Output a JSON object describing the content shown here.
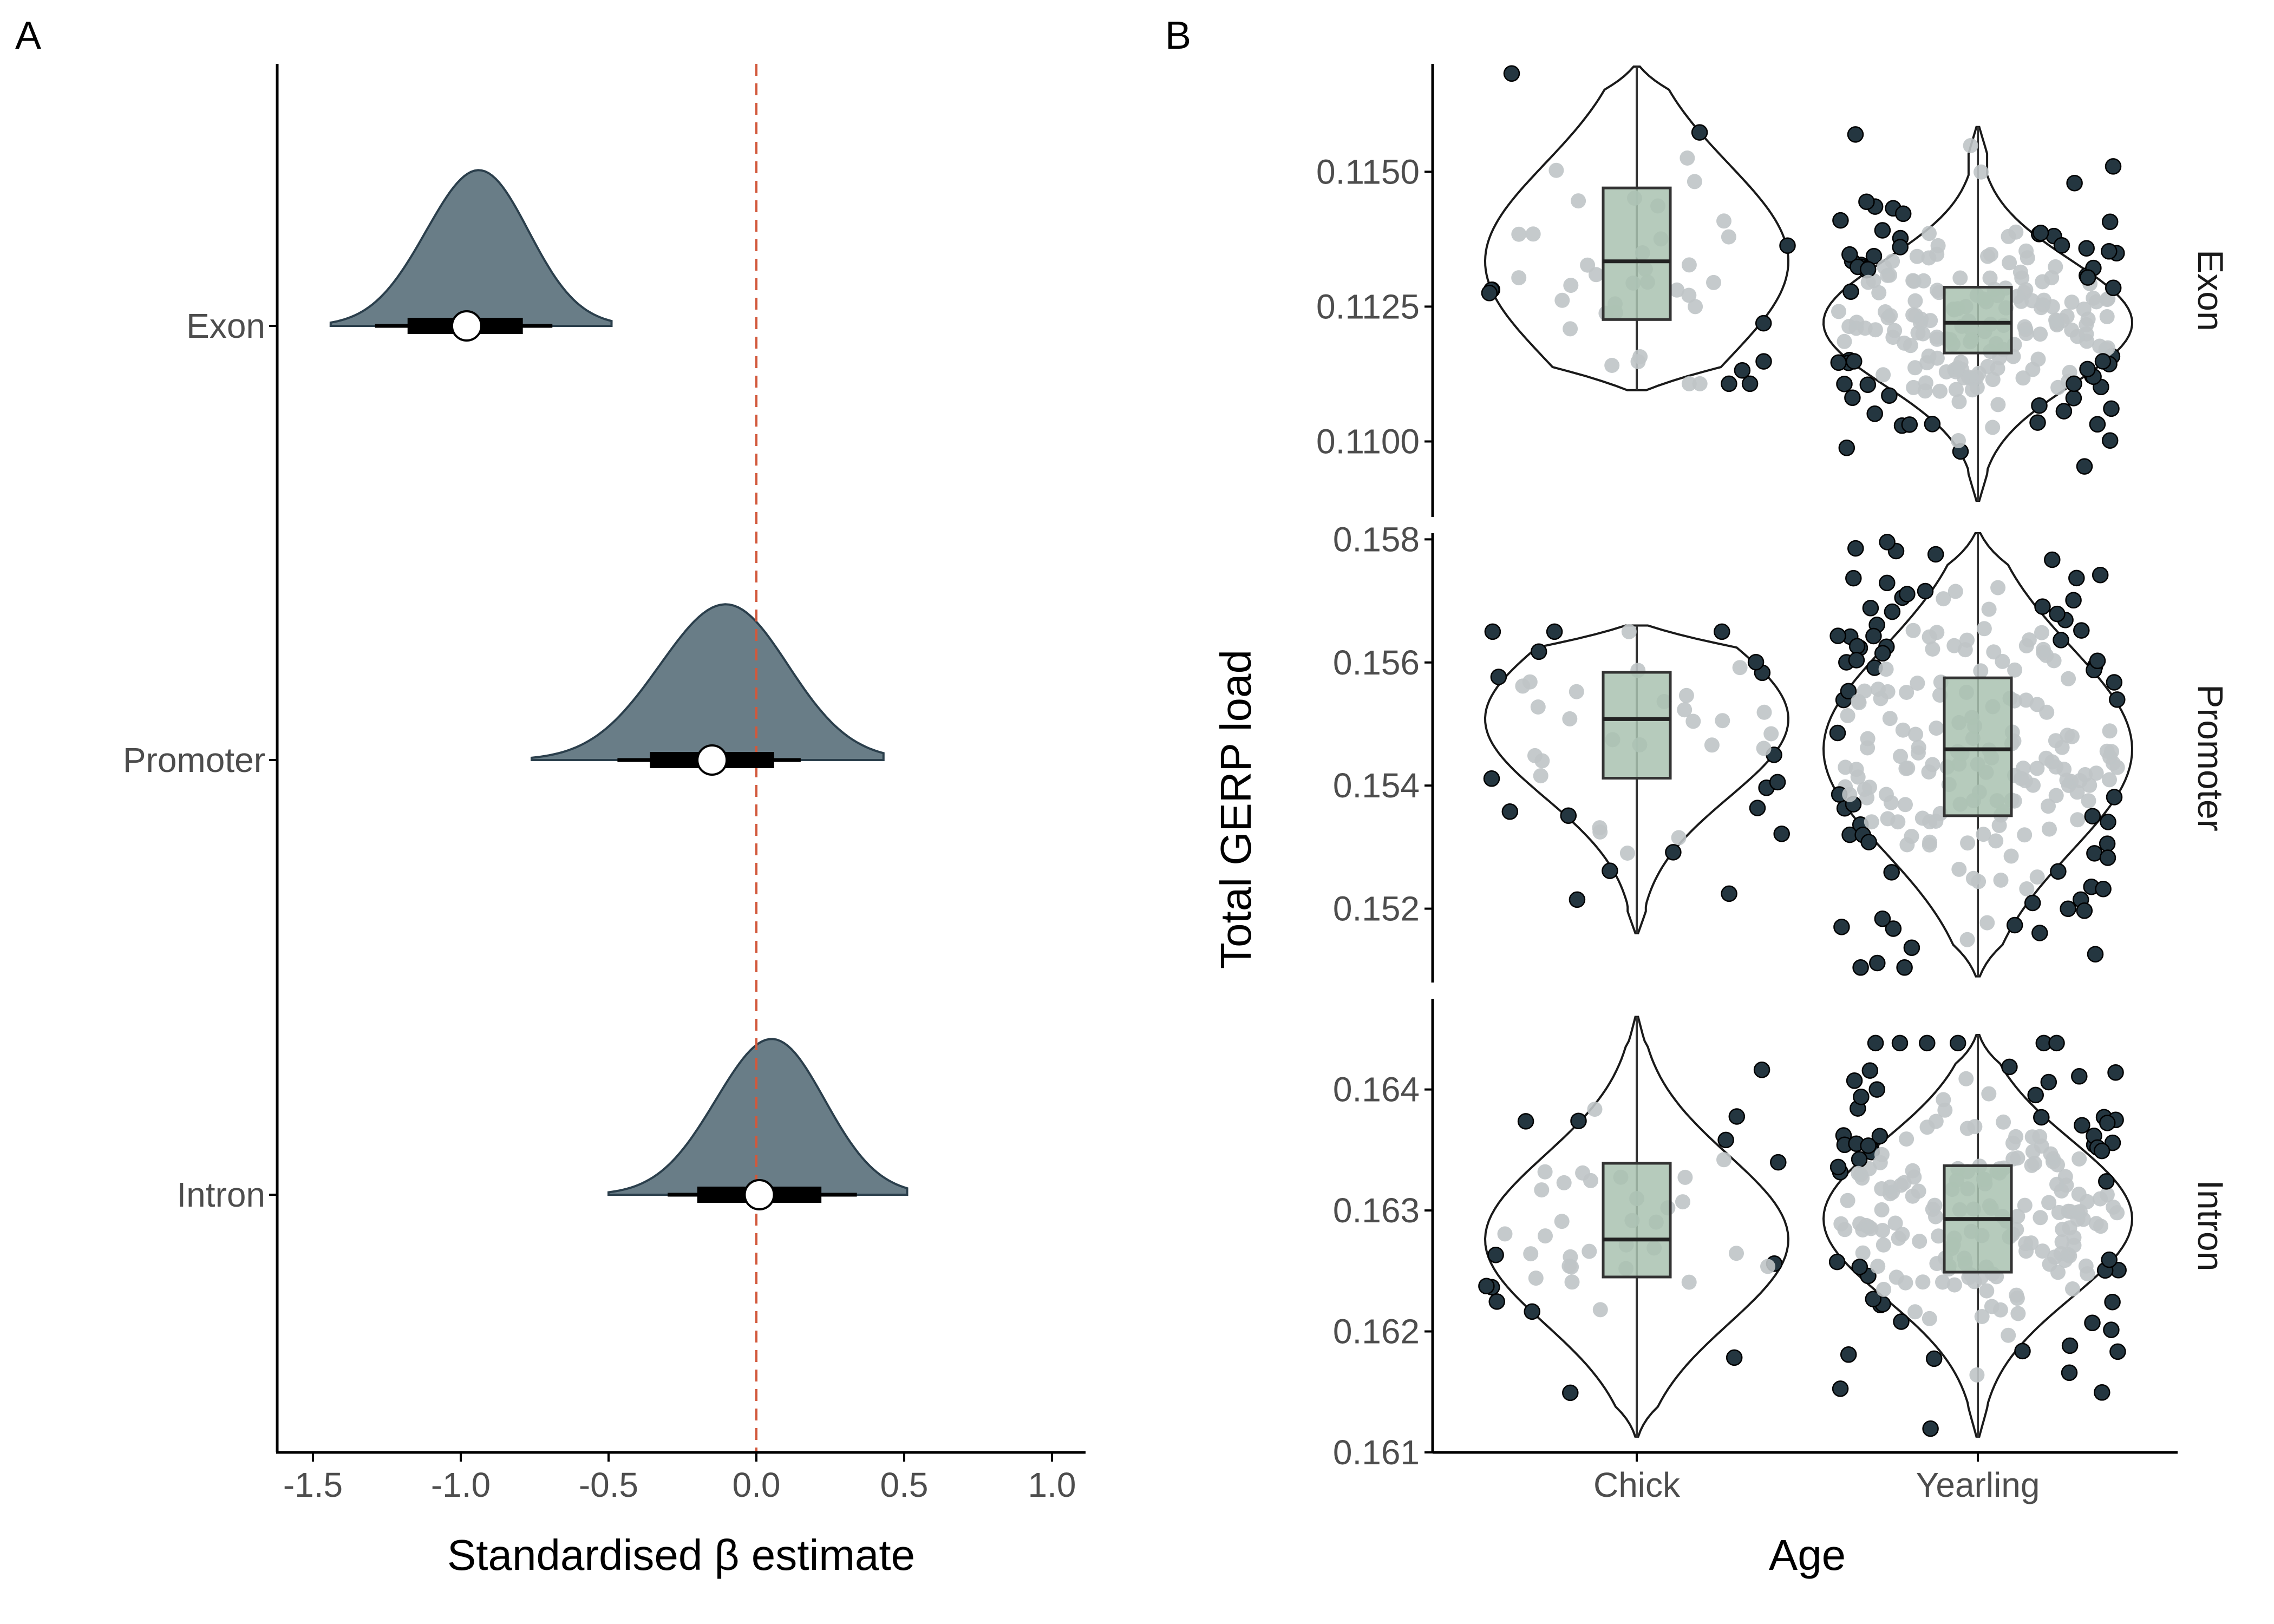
{
  "colors": {
    "density_fill": "#697d87",
    "density_stroke": "#2b3f4c",
    "reference_line": "#d2583b",
    "box_fill": "#a9c2b0",
    "box_stroke": "#333333",
    "outlier_point_fill": "#243640",
    "inner_point_fill": "#bfc4c6",
    "axis": "#000000",
    "violin_stroke": "#1a1a1a"
  },
  "panel_a": {
    "letter": "A",
    "xlabel": "Standardised β estimate",
    "x_ticks": [
      "-1.5",
      "-1.0",
      "-0.5",
      "0.0",
      "0.5",
      "1.0"
    ],
    "chart_data": {
      "type": "density-interval (halfeye)",
      "xlim": [
        -1.62,
        1.12
      ],
      "reference_line_x": 0.0,
      "categories": [
        "Exon",
        "Promoter",
        "Intron"
      ],
      "series": [
        {
          "name": "Exon",
          "median": -0.98,
          "interval_66": [
            -1.18,
            -0.79
          ],
          "interval_95": [
            -1.29,
            -0.69
          ],
          "density_range": [
            -1.44,
            -0.49
          ],
          "mode": -0.96
        },
        {
          "name": "Promoter",
          "median": -0.15,
          "interval_66": [
            -0.36,
            0.06
          ],
          "interval_95": [
            -0.47,
            0.15
          ],
          "density_range": [
            -0.76,
            0.43
          ],
          "mode": -0.13
        },
        {
          "name": "Intron",
          "median": 0.01,
          "interval_66": [
            -0.2,
            0.22
          ],
          "interval_95": [
            -0.3,
            0.34
          ],
          "density_range": [
            -0.5,
            0.51
          ],
          "mode": 0.03
        }
      ]
    }
  },
  "panel_b": {
    "letter": "B",
    "xlabel": "Age",
    "ylabel": "Total GERP load",
    "x_categories": [
      "Chick",
      "Yearling"
    ],
    "chart_data": [
      {
        "type": "violin+box+jitter",
        "facet": "Exon",
        "ylim": [
          0.1086,
          0.117
        ],
        "y_ticks": [
          "0.1100",
          "0.1125",
          "0.1150"
        ],
        "y_tick_values": [
          0.11,
          0.1125,
          0.115
        ],
        "groups": [
          {
            "name": "Chick",
            "q1": 0.11226,
            "median": 0.11334,
            "q3": 0.1147,
            "violin_range": [
              0.11095,
              0.11695
            ],
            "n_points": 45
          },
          {
            "name": "Yearling",
            "q1": 0.11164,
            "median": 0.1122,
            "q3": 0.11286,
            "violin_range": [
              0.1089,
              0.11583
            ],
            "n_points": 220
          }
        ]
      },
      {
        "type": "violin+box+jitter",
        "facet": "Promoter",
        "ylim": [
          0.1508,
          0.1581
        ],
        "y_ticks": [
          "0.152",
          "0.154",
          "0.156",
          "0.158"
        ],
        "y_tick_values": [
          0.152,
          0.154,
          0.156,
          0.158
        ],
        "groups": [
          {
            "name": "Chick",
            "q1": 0.15412,
            "median": 0.15508,
            "q3": 0.15584,
            "violin_range": [
              0.1516,
              0.1566
            ],
            "n_points": 45
          },
          {
            "name": "Yearling",
            "q1": 0.15351,
            "median": 0.15459,
            "q3": 0.15575,
            "violin_range": [
              0.1509,
              0.1581
            ],
            "n_points": 220
          }
        ]
      },
      {
        "type": "violin+box+jitter",
        "facet": "Intron",
        "ylim": [
          0.161,
          0.16475
        ],
        "y_ticks": [
          "0.161",
          "0.162",
          "0.163",
          "0.164"
        ],
        "y_tick_values": [
          0.161,
          0.162,
          0.163,
          0.164
        ],
        "groups": [
          {
            "name": "Chick",
            "q1": 0.16245,
            "median": 0.16276,
            "q3": 0.16339,
            "violin_range": [
              0.16113,
              0.1646
            ],
            "n_points": 45
          },
          {
            "name": "Yearling",
            "q1": 0.16249,
            "median": 0.16293,
            "q3": 0.16337,
            "violin_range": [
              0.16113,
              0.16445
            ],
            "n_points": 220
          }
        ]
      }
    ]
  }
}
